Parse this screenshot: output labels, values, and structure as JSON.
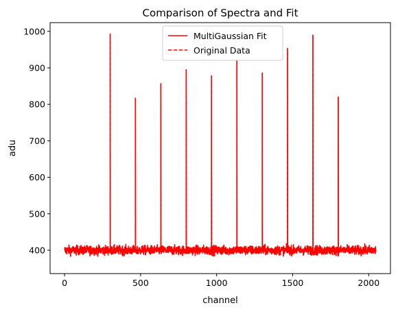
{
  "chart_data": {
    "type": "line",
    "title": "Comparison of Spectra and Fit",
    "xlabel": "channel",
    "ylabel": "adu",
    "xlim": [
      -95,
      2143
    ],
    "ylim": [
      336,
      1024
    ],
    "xticks": [
      0,
      500,
      1000,
      1500,
      2000
    ],
    "yticks": [
      400,
      500,
      600,
      700,
      800,
      900,
      1000
    ],
    "grid": false,
    "legend_position": "top-center",
    "baseline": 400,
    "noise_amplitude": 12,
    "x_range": [
      0,
      2048
    ],
    "peaks": [
      {
        "x": 300,
        "y": 993
      },
      {
        "x": 466,
        "y": 817
      },
      {
        "x": 633,
        "y": 857
      },
      {
        "x": 800,
        "y": 895
      },
      {
        "x": 966,
        "y": 878
      },
      {
        "x": 1133,
        "y": 922
      },
      {
        "x": 1300,
        "y": 886
      },
      {
        "x": 1466,
        "y": 953
      },
      {
        "x": 1633,
        "y": 990
      },
      {
        "x": 1800,
        "y": 820
      }
    ],
    "series": [
      {
        "name": "MultiGaussian Fit",
        "style": "solid",
        "color": "#ff0000"
      },
      {
        "name": "Original Data",
        "style": "dashed",
        "color": "#ff0000"
      }
    ]
  }
}
